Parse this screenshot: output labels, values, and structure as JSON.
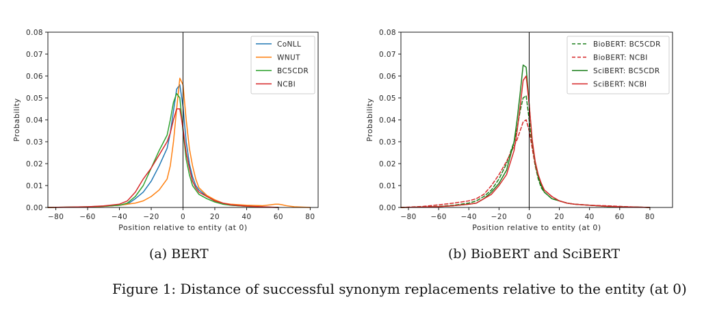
{
  "figure_caption": "Figure 1: Distance of successful synonym replacements relative to the entity (at 0)",
  "chart_data": [
    {
      "type": "line",
      "subtitle": "(a) BERT",
      "xlabel": "Position relative to entity (at 0)",
      "ylabel": "Probability",
      "xlim": [
        -85,
        85
      ],
      "ylim": [
        0,
        0.08
      ],
      "xticks": [
        -80,
        -60,
        -40,
        -20,
        0,
        20,
        40,
        60,
        80
      ],
      "xtick_labels": [
        "−80",
        "−60",
        "−40",
        "−20",
        "0",
        "20",
        "40",
        "60",
        "80"
      ],
      "yticks": [
        0,
        0.01,
        0.02,
        0.03,
        0.04,
        0.05,
        0.06,
        0.07,
        0.08
      ],
      "ytick_labels": [
        "0.00",
        "0.01",
        "0.02",
        "0.03",
        "0.04",
        "0.05",
        "0.06",
        "0.07",
        "0.08"
      ],
      "vline_x": 0,
      "grid": false,
      "legend_position": "top-right",
      "series": [
        {
          "name": "CoNLL",
          "color": "#1f77b4",
          "dashed": false,
          "x": [
            -85,
            -60,
            -50,
            -40,
            -35,
            -30,
            -25,
            -20,
            -15,
            -10,
            -8,
            -6,
            -4,
            -2,
            0,
            2,
            4,
            6,
            8,
            10,
            15,
            20,
            25,
            30,
            40,
            50,
            60
          ],
          "y": [
            0,
            0.0002,
            0.0005,
            0.001,
            0.0015,
            0.004,
            0.007,
            0.012,
            0.019,
            0.027,
            0.034,
            0.044,
            0.054,
            0.056,
            0.046,
            0.03,
            0.02,
            0.014,
            0.01,
            0.008,
            0.005,
            0.003,
            0.002,
            0.001,
            0.0005,
            0.0002,
            0
          ]
        },
        {
          "name": "WNUT",
          "color": "#ff7f0e",
          "dashed": false,
          "x": [
            -85,
            -60,
            -50,
            -40,
            -30,
            -25,
            -20,
            -15,
            -10,
            -8,
            -6,
            -4,
            -2,
            0,
            2,
            4,
            6,
            8,
            10,
            15,
            20,
            25,
            30,
            40,
            50,
            55,
            58,
            60,
            62,
            65,
            70,
            80
          ],
          "y": [
            0,
            0.0002,
            0.0005,
            0.001,
            0.002,
            0.003,
            0.005,
            0.008,
            0.013,
            0.019,
            0.03,
            0.045,
            0.059,
            0.056,
            0.04,
            0.027,
            0.019,
            0.013,
            0.009,
            0.0055,
            0.0035,
            0.002,
            0.0015,
            0.001,
            0.0008,
            0.0012,
            0.0015,
            0.0015,
            0.0013,
            0.0008,
            0.0003,
            0
          ]
        },
        {
          "name": "BC5CDR",
          "color": "#2ca02c",
          "dashed": false,
          "x": [
            -85,
            -60,
            -50,
            -40,
            -35,
            -30,
            -25,
            -20,
            -15,
            -10,
            -8,
            -6,
            -4,
            -2,
            0,
            2,
            4,
            6,
            8,
            10,
            15,
            20,
            25,
            30,
            40,
            50,
            60
          ],
          "y": [
            0,
            0.0003,
            0.0006,
            0.001,
            0.002,
            0.005,
            0.01,
            0.018,
            0.026,
            0.033,
            0.04,
            0.048,
            0.052,
            0.05,
            0.035,
            0.022,
            0.015,
            0.01,
            0.008,
            0.006,
            0.004,
            0.0025,
            0.0015,
            0.001,
            0.0005,
            0.0002,
            0
          ]
        },
        {
          "name": "NCBI",
          "color": "#d62728",
          "dashed": false,
          "x": [
            -85,
            -60,
            -50,
            -40,
            -35,
            -30,
            -25,
            -20,
            -15,
            -10,
            -8,
            -6,
            -4,
            -2,
            0,
            2,
            4,
            6,
            8,
            10,
            15,
            20,
            25,
            30,
            40,
            50,
            60
          ],
          "y": [
            0,
            0.0003,
            0.0007,
            0.0015,
            0.003,
            0.007,
            0.013,
            0.018,
            0.024,
            0.03,
            0.034,
            0.04,
            0.045,
            0.045,
            0.036,
            0.025,
            0.018,
            0.012,
            0.009,
            0.007,
            0.005,
            0.003,
            0.002,
            0.0012,
            0.0006,
            0.0003,
            0
          ]
        }
      ]
    },
    {
      "type": "line",
      "subtitle": "(b) BioBERT and SciBERT",
      "xlabel": "Position relative to entity (at 0)",
      "ylabel": "Probability",
      "xlim": [
        -85,
        95
      ],
      "ylim": [
        0,
        0.08
      ],
      "xticks": [
        -80,
        -60,
        -40,
        -20,
        0,
        20,
        40,
        60,
        80
      ],
      "xtick_labels": [
        "−80",
        "−60",
        "−40",
        "−20",
        "0",
        "20",
        "40",
        "60",
        "80"
      ],
      "yticks": [
        0,
        0.01,
        0.02,
        0.03,
        0.04,
        0.05,
        0.06,
        0.07,
        0.08
      ],
      "ytick_labels": [
        "0.00",
        "0.01",
        "0.02",
        "0.03",
        "0.04",
        "0.05",
        "0.06",
        "0.07",
        "0.08"
      ],
      "vline_x": 0,
      "grid": false,
      "legend_position": "top-right",
      "series": [
        {
          "name": "BioBERT: BC5CDR",
          "color": "#1a7f1a",
          "dashed": true,
          "x": [
            -85,
            -70,
            -60,
            -50,
            -40,
            -35,
            -30,
            -25,
            -20,
            -15,
            -10,
            -8,
            -6,
            -4,
            -2,
            0,
            2,
            4,
            6,
            8,
            10,
            15,
            20,
            25,
            30,
            40,
            50,
            60,
            70,
            80
          ],
          "y": [
            0,
            0.0002,
            0.0005,
            0.001,
            0.002,
            0.003,
            0.005,
            0.008,
            0.013,
            0.02,
            0.03,
            0.036,
            0.044,
            0.05,
            0.051,
            0.04,
            0.028,
            0.019,
            0.013,
            0.009,
            0.007,
            0.004,
            0.003,
            0.002,
            0.0015,
            0.001,
            0.0005,
            0.0003,
            0.0002,
            0
          ]
        },
        {
          "name": "BioBERT: NCBI",
          "color": "#d62728",
          "dashed": true,
          "x": [
            -85,
            -70,
            -60,
            -50,
            -40,
            -35,
            -30,
            -25,
            -20,
            -15,
            -10,
            -8,
            -6,
            -4,
            -2,
            0,
            2,
            4,
            6,
            8,
            10,
            15,
            20,
            25,
            30,
            40,
            50,
            60,
            70,
            80
          ],
          "y": [
            0,
            0.0005,
            0.0012,
            0.002,
            0.003,
            0.004,
            0.006,
            0.01,
            0.015,
            0.021,
            0.028,
            0.031,
            0.035,
            0.039,
            0.04,
            0.035,
            0.027,
            0.019,
            0.014,
            0.011,
            0.008,
            0.005,
            0.003,
            0.002,
            0.0015,
            0.001,
            0.0008,
            0.0005,
            0.0002,
            0
          ]
        },
        {
          "name": "SciBERT: BC5CDR",
          "color": "#1a7f1a",
          "dashed": false,
          "x": [
            -85,
            -70,
            -60,
            -50,
            -40,
            -35,
            -30,
            -25,
            -20,
            -15,
            -10,
            -8,
            -6,
            -4,
            -2,
            0,
            2,
            4,
            6,
            8,
            10,
            15,
            20,
            25,
            30,
            40,
            50,
            60,
            70,
            80
          ],
          "y": [
            0,
            0.0002,
            0.0004,
            0.0008,
            0.0015,
            0.002,
            0.004,
            0.007,
            0.011,
            0.017,
            0.03,
            0.04,
            0.052,
            0.065,
            0.064,
            0.047,
            0.03,
            0.02,
            0.014,
            0.01,
            0.007,
            0.004,
            0.003,
            0.002,
            0.0015,
            0.001,
            0.0005,
            0.0003,
            0.0002,
            0
          ]
        },
        {
          "name": "SciBERT: NCBI",
          "color": "#d62728",
          "dashed": false,
          "x": [
            -85,
            -70,
            -60,
            -50,
            -40,
            -35,
            -30,
            -25,
            -20,
            -15,
            -10,
            -8,
            -6,
            -4,
            -2,
            0,
            2,
            4,
            6,
            8,
            10,
            15,
            20,
            25,
            30,
            40,
            50,
            60,
            70,
            80
          ],
          "y": [
            0,
            0.0002,
            0.0004,
            0.0008,
            0.0015,
            0.002,
            0.004,
            0.006,
            0.01,
            0.015,
            0.026,
            0.035,
            0.046,
            0.058,
            0.06,
            0.047,
            0.031,
            0.021,
            0.015,
            0.011,
            0.008,
            0.005,
            0.003,
            0.002,
            0.0015,
            0.001,
            0.0006,
            0.0003,
            0.0002,
            0
          ]
        }
      ]
    }
  ]
}
